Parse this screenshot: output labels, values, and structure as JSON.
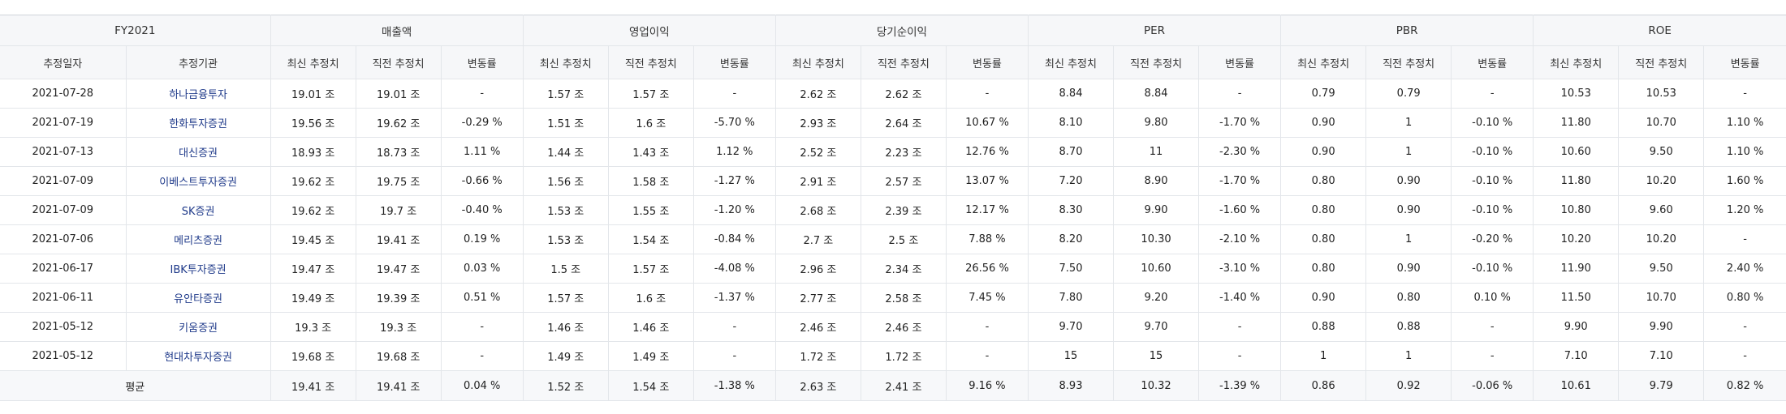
{
  "table": {
    "fiscal_year_label": "FY2021",
    "groups": [
      "매출액",
      "영업이익",
      "당기순이익",
      "PER",
      "PBR",
      "ROE"
    ],
    "date_header": "추정일자",
    "broker_header": "추정기관",
    "metric_subheaders": [
      "최신 추정치",
      "직전 추정치",
      "변동률"
    ],
    "rows": [
      {
        "date": "2021-07-28",
        "broker": "하나금융투자",
        "cells": [
          "19.01 조",
          "19.01 조",
          "-",
          "1.57 조",
          "1.57 조",
          "-",
          "2.62 조",
          "2.62 조",
          "-",
          "8.84",
          "8.84",
          "-",
          "0.79",
          "0.79",
          "-",
          "10.53",
          "10.53",
          "-"
        ]
      },
      {
        "date": "2021-07-19",
        "broker": "한화투자증권",
        "cells": [
          "19.56 조",
          "19.62 조",
          "-0.29 %",
          "1.51 조",
          "1.6 조",
          "-5.70 %",
          "2.93 조",
          "2.64 조",
          "10.67 %",
          "8.10",
          "9.80",
          "-1.70 %",
          "0.90",
          "1",
          "-0.10 %",
          "11.80",
          "10.70",
          "1.10 %"
        ]
      },
      {
        "date": "2021-07-13",
        "broker": "대신증권",
        "cells": [
          "18.93 조",
          "18.73 조",
          "1.11 %",
          "1.44 조",
          "1.43 조",
          "1.12 %",
          "2.52 조",
          "2.23 조",
          "12.76 %",
          "8.70",
          "11",
          "-2.30 %",
          "0.90",
          "1",
          "-0.10 %",
          "10.60",
          "9.50",
          "1.10 %"
        ]
      },
      {
        "date": "2021-07-09",
        "broker": "이베스트투자증권",
        "cells": [
          "19.62 조",
          "19.75 조",
          "-0.66 %",
          "1.56 조",
          "1.58 조",
          "-1.27 %",
          "2.91 조",
          "2.57 조",
          "13.07 %",
          "7.20",
          "8.90",
          "-1.70 %",
          "0.80",
          "0.90",
          "-0.10 %",
          "11.80",
          "10.20",
          "1.60 %"
        ]
      },
      {
        "date": "2021-07-09",
        "broker": "SK증권",
        "cells": [
          "19.62 조",
          "19.7 조",
          "-0.40 %",
          "1.53 조",
          "1.55 조",
          "-1.20 %",
          "2.68 조",
          "2.39 조",
          "12.17 %",
          "8.30",
          "9.90",
          "-1.60 %",
          "0.80",
          "0.90",
          "-0.10 %",
          "10.80",
          "9.60",
          "1.20 %"
        ]
      },
      {
        "date": "2021-07-06",
        "broker": "메리츠증권",
        "cells": [
          "19.45 조",
          "19.41 조",
          "0.19 %",
          "1.53 조",
          "1.54 조",
          "-0.84 %",
          "2.7 조",
          "2.5 조",
          "7.88 %",
          "8.20",
          "10.30",
          "-2.10 %",
          "0.80",
          "1",
          "-0.20 %",
          "10.20",
          "10.20",
          "-"
        ]
      },
      {
        "date": "2021-06-17",
        "broker": "IBK투자증권",
        "cells": [
          "19.47 조",
          "19.47 조",
          "0.03 %",
          "1.5 조",
          "1.57 조",
          "-4.08 %",
          "2.96 조",
          "2.34 조",
          "26.56 %",
          "7.50",
          "10.60",
          "-3.10 %",
          "0.80",
          "0.90",
          "-0.10 %",
          "11.90",
          "9.50",
          "2.40 %"
        ]
      },
      {
        "date": "2021-06-11",
        "broker": "유안타증권",
        "cells": [
          "19.49 조",
          "19.39 조",
          "0.51 %",
          "1.57 조",
          "1.6 조",
          "-1.37 %",
          "2.77 조",
          "2.58 조",
          "7.45 %",
          "7.80",
          "9.20",
          "-1.40 %",
          "0.90",
          "0.80",
          "0.10 %",
          "11.50",
          "10.70",
          "0.80 %"
        ]
      },
      {
        "date": "2021-05-12",
        "broker": "키움증권",
        "cells": [
          "19.3 조",
          "19.3 조",
          "-",
          "1.46 조",
          "1.46 조",
          "-",
          "2.46 조",
          "2.46 조",
          "-",
          "9.70",
          "9.70",
          "-",
          "0.88",
          "0.88",
          "-",
          "9.90",
          "9.90",
          "-"
        ]
      },
      {
        "date": "2021-05-12",
        "broker": "현대차투자증권",
        "cells": [
          "19.68 조",
          "19.68 조",
          "-",
          "1.49 조",
          "1.49 조",
          "-",
          "1.72 조",
          "1.72 조",
          "-",
          "15",
          "15",
          "-",
          "1",
          "1",
          "-",
          "7.10",
          "7.10",
          "-"
        ]
      }
    ],
    "average_row": {
      "label": "평균",
      "cells": [
        "19.41 조",
        "19.41 조",
        "0.04 %",
        "1.52 조",
        "1.54 조",
        "-1.38 %",
        "2.63 조",
        "2.41 조",
        "9.16 %",
        "8.93",
        "10.32",
        "-1.39 %",
        "0.86",
        "0.92",
        "-0.06 %",
        "10.61",
        "9.79",
        "0.82 %"
      ]
    }
  }
}
